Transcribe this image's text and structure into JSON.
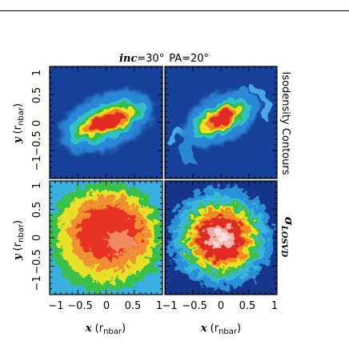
{
  "figure": {
    "title_inc_symbol": "inc",
    "title_inc_value": "=30°",
    "title_pa": "PA=20°",
    "right_label_top": "Isodensity Contours",
    "right_label_bottom_symbol": "σ",
    "right_label_bottom_sub": "LOSVD"
  },
  "colors": {
    "frame": "#000000",
    "low": "#1a3fa0",
    "mid": "#2aa0e0",
    "green": "#30c040",
    "yellow": "#f0e020",
    "orange": "#f08020",
    "red": "#e02020",
    "peak": "#f8d8d0"
  },
  "chart_data": [
    {
      "type": "heatmap",
      "panel": "top-left",
      "quantity": "isodensity",
      "xlim": [
        -1,
        1
      ],
      "ylim": [
        -1,
        1
      ],
      "x_ticks": [],
      "y_ticks": [
        "−1",
        "−0.5",
        "0",
        "0.5",
        "1"
      ],
      "ylabel_symbol": "y",
      "ylabel_unit": "r",
      "ylabel_unit_sub": "nbar",
      "feature": {
        "shape": "elongated bar",
        "center": [
          0,
          0
        ],
        "major_axis_deg": 20,
        "extent_major": 0.7,
        "extent_minor": 0.25
      }
    },
    {
      "type": "heatmap",
      "panel": "top-right",
      "quantity": "isodensity",
      "xlim": [
        -1,
        1
      ],
      "ylim": [
        -1,
        1
      ],
      "feature": {
        "shape": "bar with spiral arms",
        "center": [
          0,
          0
        ],
        "major_axis_deg": 25,
        "extent_major": 0.55,
        "extent_minor": 0.22
      }
    },
    {
      "type": "heatmap",
      "panel": "bottom-left",
      "quantity": "LOSVD",
      "xlim": [
        -1,
        1
      ],
      "ylim": [
        -1,
        1
      ],
      "x_ticks": [
        "−1",
        "−0.5",
        "0",
        "0.5",
        "1"
      ],
      "y_ticks": [
        "−1",
        "−0.5",
        "0",
        "0.5",
        "1"
      ],
      "xlabel_symbol": "x",
      "xlabel_unit": "r",
      "xlabel_unit_sub": "nbar",
      "ylabel_symbol": "y",
      "ylabel_unit": "r",
      "ylabel_unit_sub": "nbar",
      "feature": {
        "shape": "broad noisy dispersion peak",
        "center": [
          0,
          0.05
        ],
        "extent": 0.8
      }
    },
    {
      "type": "heatmap",
      "panel": "bottom-right",
      "quantity": "LOSVD",
      "xlim": [
        -1,
        1
      ],
      "ylim": [
        -1,
        1
      ],
      "x_ticks": [
        "−1",
        "−0.5",
        "0",
        "0.5",
        "1"
      ],
      "xlabel_symbol": "x",
      "xlabel_unit": "r",
      "xlabel_unit_sub": "nbar",
      "feature": {
        "shape": "central dispersion peak",
        "center": [
          0,
          0
        ],
        "extent": 0.55
      }
    }
  ]
}
